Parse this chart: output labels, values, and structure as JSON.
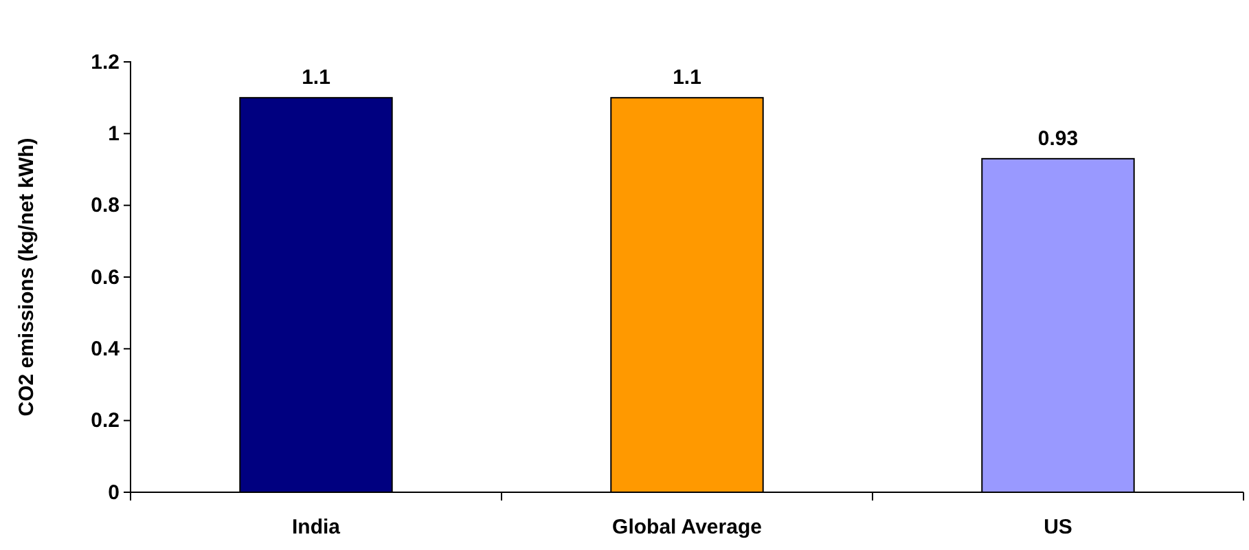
{
  "chart_data": {
    "type": "bar",
    "ylabel": "CO2 emissions (kg/net kWh)",
    "categories": [
      "India",
      "Global Average",
      "US"
    ],
    "values": [
      1.1,
      1.1,
      0.93
    ],
    "colors": [
      "#000080",
      "#ff9900",
      "#9999ff"
    ],
    "ylim": [
      0,
      1.2
    ],
    "yticks": [
      0,
      0.2,
      0.4,
      0.6,
      0.8,
      1,
      1.2
    ],
    "data_labels": true
  }
}
